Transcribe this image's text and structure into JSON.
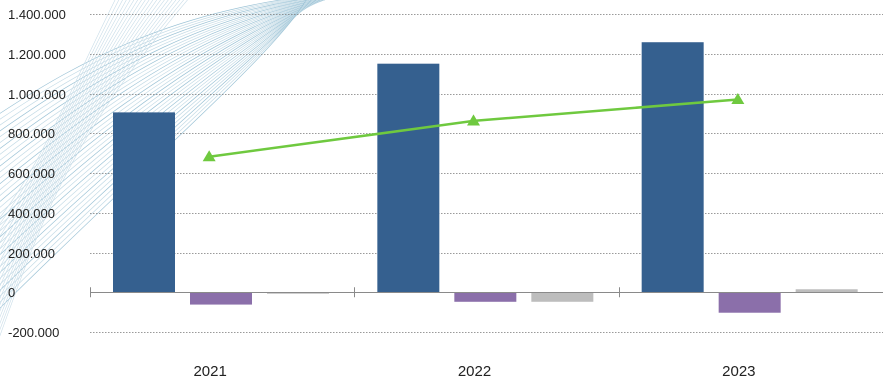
{
  "chart_data": {
    "type": "bar",
    "categories": [
      "2021",
      "2022",
      "2023"
    ],
    "ylim": [
      -200000,
      1400000
    ],
    "yticks": [
      1400000,
      1200000,
      1000000,
      800000,
      600000,
      400000,
      200000,
      0,
      -200000
    ],
    "ytick_labels": [
      "1.400.000",
      "1.200.000",
      "1.000.000",
      "800.000",
      "600.000",
      "400.000",
      "200.000",
      "0",
      "-200.000"
    ],
    "grid": "horizontal dotted",
    "series": [
      {
        "type": "bar",
        "color": "#35608f",
        "values": [
          905000,
          1150000,
          1258000
        ]
      },
      {
        "type": "bar",
        "color": "#8b6faa",
        "values": [
          -62000,
          -48000,
          -103000
        ]
      },
      {
        "type": "bar",
        "color": "#bdbdbd",
        "values": [
          -6000,
          -48000,
          15000
        ]
      },
      {
        "type": "line",
        "color": "#6fc93f",
        "marker": "triangle",
        "values": [
          682000,
          862000,
          970000
        ]
      }
    ]
  }
}
